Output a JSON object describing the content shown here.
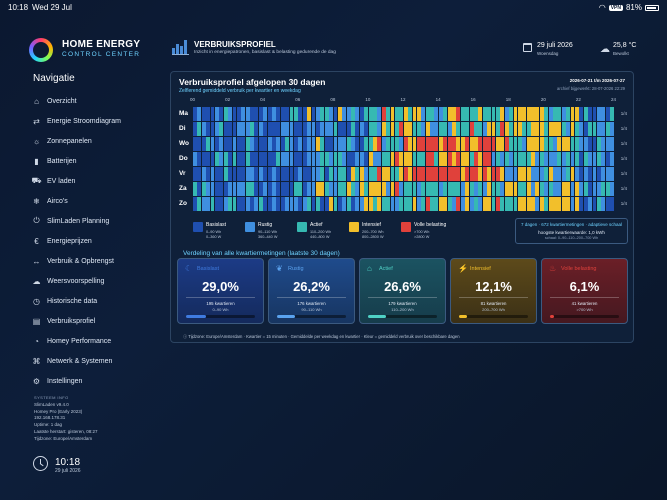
{
  "status": {
    "time": "10:18",
    "date": "Wed 29 Jul",
    "vpn": "VPN",
    "battery": "81%"
  },
  "logo": {
    "line1": "HOME ENERGY",
    "line2": "CONTROL CENTER"
  },
  "nav": {
    "heading": "Navigatie",
    "items": [
      {
        "label": "Overzicht",
        "icon": "home-icon"
      },
      {
        "label": "Energie Stroomdiagram",
        "icon": "flow-icon"
      },
      {
        "label": "Zonnepanelen",
        "icon": "sun-icon"
      },
      {
        "label": "Batterijen",
        "icon": "battery-icon"
      },
      {
        "label": "EV laden",
        "icon": "ev-icon"
      },
      {
        "label": "Airco's",
        "icon": "snowflake-icon"
      },
      {
        "label": "SlimLaden Planning",
        "icon": "plug-icon"
      },
      {
        "label": "Energieprijzen",
        "icon": "euro-icon"
      },
      {
        "label": "Verbruik & Opbrengst",
        "icon": "arrows-icon"
      },
      {
        "label": "Weersvoorspelling",
        "icon": "weather-icon"
      },
      {
        "label": "Historische data",
        "icon": "history-icon"
      },
      {
        "label": "Verbruiksprofiel",
        "icon": "profile-icon"
      },
      {
        "label": "Homey Performance",
        "icon": "gauge-icon"
      },
      {
        "label": "Netwerk & Systemen",
        "icon": "network-icon"
      },
      {
        "label": "Instellingen",
        "icon": "gear-icon"
      }
    ]
  },
  "sysinfo": {
    "heading": "SYSTEEM INFO",
    "lines": [
      "SlimLaden v9.4.0",
      "Homey Pro (Early 2023)",
      "192.168.178.31",
      "Uptime: 1 dag",
      "Laatste herstart: gisteren, 08:27",
      "Tijdzone: Europe/Amsterdam"
    ]
  },
  "clock": {
    "time": "10:18",
    "date": "29 juli 2026"
  },
  "header": {
    "title": "VERBRUIKSPROFIEL",
    "subtitle": "Inzicht in energiepatronen, basislast & belasting gedurende de dag",
    "date": "29 juli 2026",
    "weekday": "Woensdag",
    "temp": "25,8 °C",
    "weather": "Bewolkt"
  },
  "panel": {
    "title": "Verbruiksprofiel afgelopen 30 dagen",
    "subtitle": "Zelflerend gemiddeld verbruik per kwartier en weekdag",
    "range": "2026-07-21 t/m 2026-07-27",
    "updated": "archief bijgewerkt: 28-07-2026 22:29",
    "hours": [
      "00",
      "02",
      "04",
      "06",
      "08",
      "10",
      "12",
      "14",
      "16",
      "18",
      "20",
      "22",
      "24"
    ],
    "days": [
      "Ma",
      "Di",
      "Wo",
      "Do",
      "Vr",
      "Za",
      "Zo"
    ],
    "day_counts": [
      "1/4",
      "1/4",
      "1/4",
      "1/4",
      "1/4",
      "1/4",
      "1/4"
    ],
    "legend": [
      {
        "name": "Basislast",
        "l1": "0–90 Wh",
        "l2": "0–360 W",
        "color": "#1f4fb0"
      },
      {
        "name": "Rustig",
        "l1": "90–110 Wh",
        "l2": "360–440 W",
        "color": "#3f8fe0"
      },
      {
        "name": "Actief",
        "l1": "110–200 Wh",
        "l2": "440–800 W",
        "color": "#36b9b2"
      },
      {
        "name": "Intensief",
        "l1": "200–700 Wh",
        "l2": "800–2800 W",
        "color": "#f2bf2b"
      },
      {
        "name": "Volle belasting",
        "l1": ">700 Wh",
        "l2": ">2800 W",
        "color": "#e0413b"
      }
    ],
    "legendbox": {
      "l1": "7 dagen · 672 kwartiermetingen · adaptieve schaal",
      "l2": "hoogste kwartierwaarde: 1,0 kWh",
      "l3": "schaal: 0–90–110–200–700 Wh"
    },
    "dist_title": "Verdeling van alle kwartiermetingen (laatste 30 dagen)",
    "cards": [
      {
        "name": "Basislast",
        "pct": "29,0%",
        "count": "195 kwartieren",
        "range": "0–90 Wh",
        "fill": 0.29,
        "icon": "moon-icon"
      },
      {
        "name": "Rustig",
        "pct": "26,2%",
        "count": "176 kwartieren",
        "range": "90–110 Wh",
        "fill": 0.262,
        "icon": "leaf-icon"
      },
      {
        "name": "Actief",
        "pct": "26,6%",
        "count": "179 kwartieren",
        "range": "110–200 Wh",
        "fill": 0.266,
        "icon": "house-icon"
      },
      {
        "name": "Intensief",
        "pct": "12,1%",
        "count": "81 kwartieren",
        "range": "200–700 Wh",
        "fill": 0.121,
        "icon": "bolt-icon"
      },
      {
        "name": "Volle belasting",
        "pct": "6,1%",
        "count": "41 kwartieren",
        "range": ">700 Wh",
        "fill": 0.061,
        "icon": "flame-icon"
      }
    ],
    "footnote": "Tijdzone: Europe/Amsterdam · Kwartier = 15 minuten · Gemiddelde per weekdag en kwartier · Kleur = gemiddeld verbruik over beschikbare dagen"
  }
}
